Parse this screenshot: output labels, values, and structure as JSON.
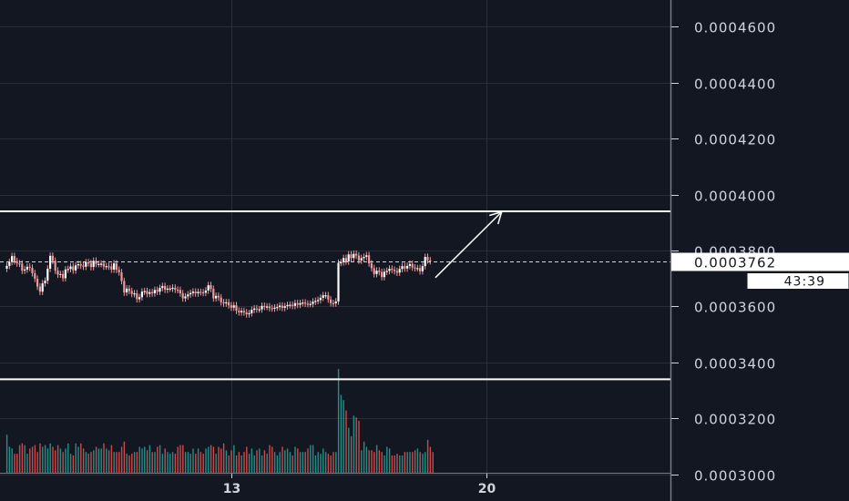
{
  "chart_data": {
    "type": "candlestick",
    "price_axis": {
      "range": [
        0.0002905,
        0.0004695
      ],
      "ticks": [
        {
          "value": 0.00046,
          "label": "0.0004600"
        },
        {
          "value": 0.00044,
          "label": "0.0004400"
        },
        {
          "value": 0.00042,
          "label": "0.0004200"
        },
        {
          "value": 0.0004,
          "label": "0.0004000"
        },
        {
          "value": 0.00038,
          "label": "0.0003800"
        },
        {
          "value": 0.00036,
          "label": "0.0003600"
        },
        {
          "value": 0.00034,
          "label": "0.0003400"
        },
        {
          "value": 0.00032,
          "label": "0.0003200"
        },
        {
          "value": 0.0003,
          "label": "0.0003000"
        }
      ]
    },
    "time_axis": {
      "ticks": [
        {
          "label": "13",
          "bar_index": 88
        },
        {
          "label": "20",
          "bar_index": 188
        }
      ]
    },
    "last_price": {
      "value": 0.0003762,
      "label": "0.0003762"
    },
    "countdown": "43:39",
    "price_levels": [
      0.000394,
      0.000334
    ],
    "arrow": {
      "from": [
        168,
        0.0003703
      ],
      "to": [
        194,
        0.0003938
      ]
    },
    "candle_color": "#ef9a9a",
    "volume_up_color": "#26a69a",
    "volume_down_color": "#ef5350",
    "colors": {
      "background": "#131722",
      "grid": "#2a2e39",
      "text": "#d1d4dc",
      "drawing": "#ffffff"
    },
    "grid": true,
    "series": [
      {
        "name": "price",
        "closes": [
          0.0003745,
          0.0003759,
          0.000378,
          0.0003762,
          0.0003754,
          0.0003753,
          0.0003728,
          0.0003732,
          0.0003742,
          0.0003738,
          0.0003719,
          0.0003699,
          0.0003671,
          0.0003653,
          0.0003683,
          0.0003692,
          0.0003735,
          0.0003781,
          0.0003763,
          0.0003728,
          0.0003714,
          0.0003716,
          0.0003701,
          0.0003732,
          0.0003734,
          0.0003743,
          0.0003729,
          0.0003747,
          0.0003751,
          0.0003746,
          0.0003742,
          0.0003758,
          0.0003755,
          0.0003741,
          0.0003763,
          0.0003752,
          0.0003752,
          0.0003753,
          0.0003743,
          0.0003744,
          0.0003743,
          0.0003732,
          0.0003754,
          0.0003731,
          0.0003722,
          0.0003691,
          0.000365,
          0.0003664,
          0.0003655,
          0.0003645,
          0.0003647,
          0.0003626,
          0.0003633,
          0.0003653,
          0.0003655,
          0.0003645,
          0.0003651,
          0.0003647,
          0.0003659,
          0.0003653,
          0.0003666,
          0.0003673,
          0.000366,
          0.0003664,
          0.0003664,
          0.0003667,
          0.000366,
          0.0003659,
          0.0003647,
          0.0003629,
          0.0003636,
          0.0003643,
          0.0003648,
          0.0003653,
          0.0003647,
          0.0003652,
          0.0003651,
          0.0003649,
          0.0003657,
          0.0003676,
          0.0003663,
          0.0003629,
          0.0003638,
          0.0003632,
          0.0003615,
          0.0003611,
          0.0003615,
          0.0003604,
          0.0003596,
          0.0003604,
          0.0003585,
          0.0003579,
          0.0003584,
          0.0003579,
          0.0003572,
          0.0003576,
          0.0003588,
          0.0003593,
          0.000359,
          0.000359,
          0.0003602,
          0.0003599,
          0.00036,
          0.0003594,
          0.0003593,
          0.0003596,
          0.0003598,
          0.0003603,
          0.0003595,
          0.0003601,
          0.0003605,
          0.0003606,
          0.0003602,
          0.0003612,
          0.0003606,
          0.0003612,
          0.0003614,
          0.000361,
          0.0003609,
          0.0003609,
          0.0003617,
          0.000362,
          0.0003623,
          0.0003631,
          0.000364,
          0.000364,
          0.0003625,
          0.0003612,
          0.0003611,
          0.0003618,
          0.0003756,
          0.0003758,
          0.0003773,
          0.0003761,
          0.0003786,
          0.0003773,
          0.0003788,
          0.0003782,
          0.0003764,
          0.0003773,
          0.0003777,
          0.0003783,
          0.0003754,
          0.0003737,
          0.0003716,
          0.0003728,
          0.0003723,
          0.0003705,
          0.0003724,
          0.0003727,
          0.0003735,
          0.0003731,
          0.0003726,
          0.0003721,
          0.0003734,
          0.0003744,
          0.0003736,
          0.0003745,
          0.0003752,
          0.0003739,
          0.0003737,
          0.0003737,
          0.0003726,
          0.0003744,
          0.0003777,
          0.0003765,
          0.0003762
        ]
      },
      {
        "name": "volume",
        "values": [
          22,
          15,
          14,
          11,
          11,
          16,
          17,
          16,
          11,
          14,
          15,
          16,
          12,
          17,
          15,
          16,
          14,
          17,
          15,
          13,
          16,
          14,
          12,
          14,
          17,
          11,
          10,
          17,
          15,
          17,
          14,
          12,
          11,
          12,
          13,
          15,
          14,
          14,
          17,
          14,
          13,
          16,
          12,
          12,
          12,
          15,
          18,
          11,
          10,
          11,
          12,
          12,
          15,
          14,
          15,
          13,
          16,
          12,
          12,
          15,
          16,
          11,
          14,
          12,
          11,
          12,
          11,
          15,
          16,
          16,
          12,
          12,
          11,
          14,
          11,
          14,
          12,
          11,
          14,
          15,
          16,
          15,
          11,
          15,
          14,
          17,
          13,
          10,
          13,
          16,
          10,
          12,
          10,
          12,
          15,
          11,
          14,
          10,
          13,
          14,
          10,
          13,
          11,
          16,
          15,
          12,
          10,
          12,
          15,
          13,
          14,
          12,
          10,
          15,
          14,
          12,
          12,
          12,
          14,
          16,
          16,
          10,
          12,
          11,
          14,
          12,
          11,
          10,
          12,
          12,
          60,
          45,
          42,
          36,
          26,
          21,
          33,
          32,
          30,
          13,
          18,
          15,
          13,
          13,
          12,
          16,
          13,
          12,
          10,
          15,
          14,
          10,
          10,
          11,
          10,
          10,
          12,
          12,
          12,
          12,
          13,
          14,
          12,
          11,
          12,
          19,
          15,
          12
        ]
      }
    ]
  }
}
